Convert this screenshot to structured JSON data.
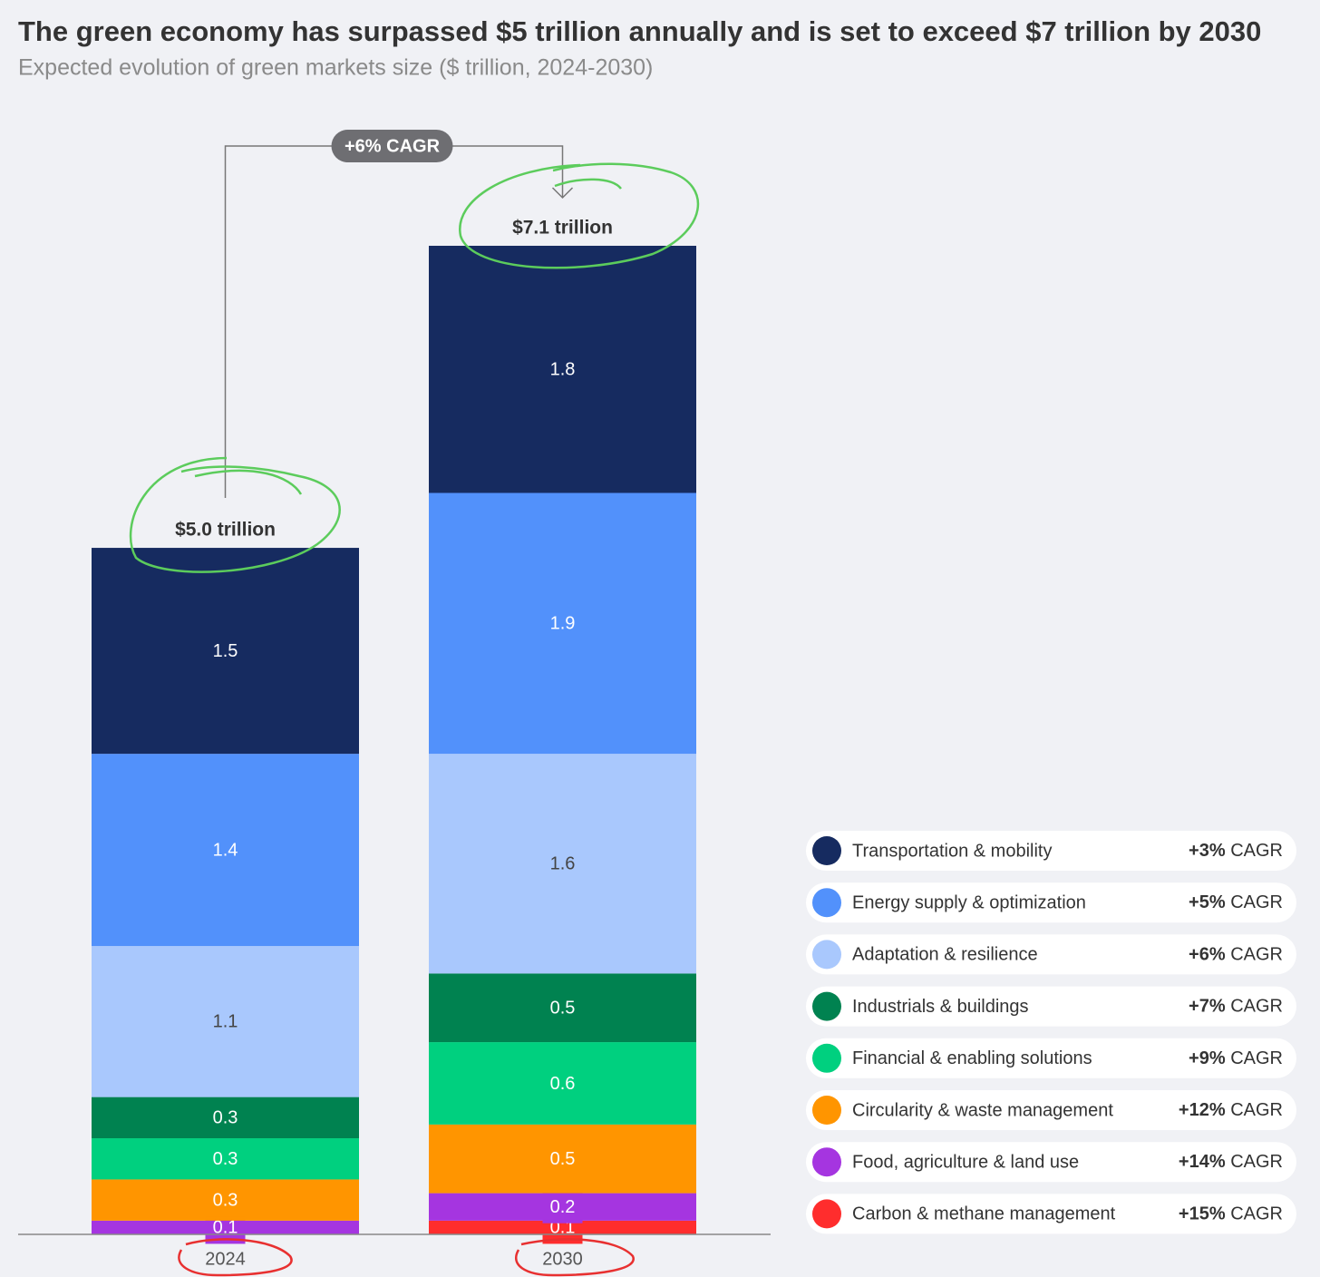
{
  "chart_data": {
    "type": "stacked_bar",
    "title": "The green economy has surpassed $5 trillion annually and is set to exceed $7 trillion by 2030",
    "subtitle": "Expected evolution of green markets size ($ trillion, 2024-2030)",
    "categories": [
      "2024",
      "2030"
    ],
    "series": [
      {
        "name": "Transportation & mobility",
        "color": "#162b60",
        "values": [
          1.5,
          1.8
        ],
        "cagr": "+3%"
      },
      {
        "name": "Energy supply & optimization",
        "color": "#5291fb",
        "values": [
          1.4,
          1.9
        ],
        "cagr": "+5%"
      },
      {
        "name": "Adaptation & resilience",
        "color": "#a9c8fd",
        "values": [
          1.1,
          1.6
        ],
        "cagr": "+6%"
      },
      {
        "name": "Industrials & buildings",
        "color": "#008250",
        "values": [
          0.3,
          0.5
        ],
        "cagr": "+7%"
      },
      {
        "name": "Financial & enabling solutions",
        "color": "#00d07f",
        "values": [
          0.3,
          0.6
        ],
        "cagr": "+9%"
      },
      {
        "name": "Circularity & waste management",
        "color": "#ff9500",
        "values": [
          0.3,
          0.5
        ],
        "cagr": "+12%"
      },
      {
        "name": "Food, agriculture & land use",
        "color": "#a535e0",
        "values": [
          0.1,
          0.2
        ],
        "cagr": "+14%"
      },
      {
        "name": "Carbon & methane management",
        "color": "#ff2d2d",
        "values": [
          null,
          0.1
        ],
        "cagr": "+15%"
      }
    ],
    "cagr_suffix": "CAGR",
    "totals": {
      "values": [
        5.0,
        7.1
      ],
      "value_labels": [
        "$5.0 trillion",
        "$7.1 trillion"
      ]
    },
    "growth_annotation": "+6% CAGR"
  }
}
